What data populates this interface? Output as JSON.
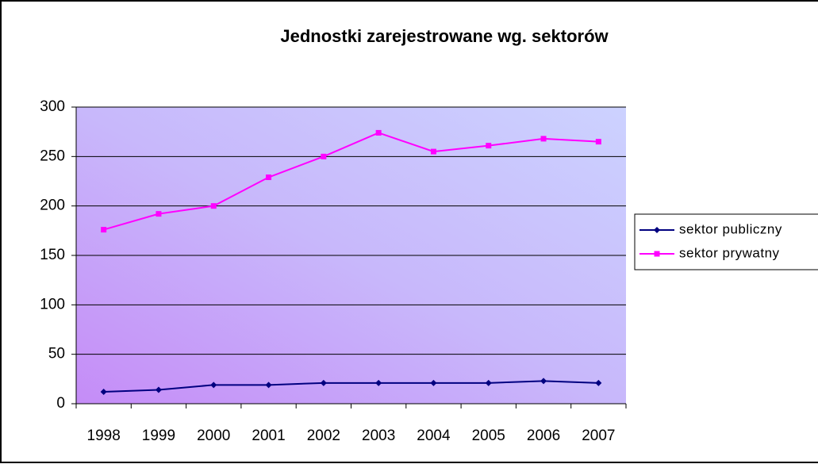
{
  "chart_data": {
    "type": "line",
    "title": "Jednostki zarejestrowane wg. sektorów",
    "categories": [
      "1998",
      "1999",
      "2000",
      "2001",
      "2002",
      "2003",
      "2004",
      "2005",
      "2006",
      "2007"
    ],
    "series": [
      {
        "name": "sektor publiczny",
        "color": "#000080",
        "values": [
          12,
          14,
          19,
          19,
          21,
          21,
          21,
          21,
          23,
          21
        ]
      },
      {
        "name": "sektor prywatny",
        "color": "#ff00ff",
        "values": [
          176,
          192,
          200,
          229,
          250,
          274,
          255,
          261,
          268,
          265
        ]
      }
    ],
    "ylim": [
      0,
      300
    ],
    "yticks": [
      0,
      50,
      100,
      150,
      200,
      250,
      300
    ],
    "grid": true
  }
}
